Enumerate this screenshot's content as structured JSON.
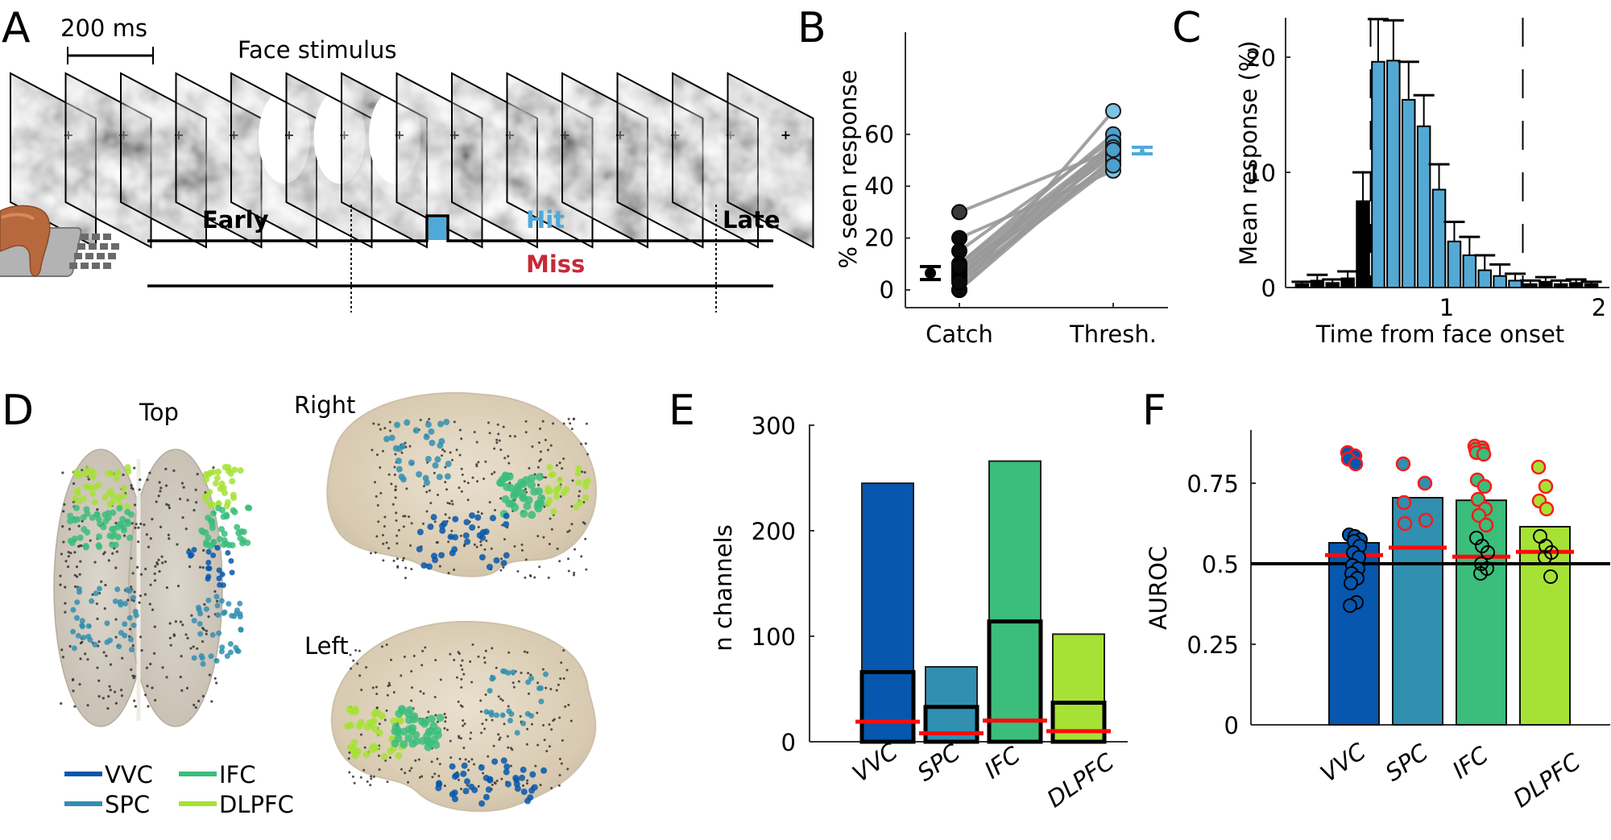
{
  "panels": {
    "A": {
      "label": "A",
      "scale_bar": "200 ms",
      "stimulus_label": "Face stimulus",
      "frame_count": 14,
      "face_frames": [
        4,
        5,
        6
      ],
      "timeline": {
        "early": "Early",
        "hit": "Hit",
        "late": "Late",
        "miss": "Miss"
      },
      "colors": {
        "hit": "#4ea9d8",
        "miss": "#c62a37"
      }
    },
    "B": {
      "label": "B"
    },
    "C": {
      "label": "C"
    },
    "D": {
      "label": "D",
      "views": [
        "Top",
        "Right",
        "Left"
      ],
      "legend": [
        {
          "name": "VVC",
          "color": "#0657ad"
        },
        {
          "name": "SPC",
          "color": "#318fb0"
        },
        {
          "name": "IFC",
          "color": "#3bbd7b"
        },
        {
          "name": "DLPFC",
          "color": "#a6e235"
        }
      ]
    },
    "E": {
      "label": "E"
    },
    "F": {
      "label": "F"
    }
  },
  "chart_data": [
    {
      "panel": "B",
      "type": "scatter",
      "title": "",
      "xlabel": "",
      "ylabel": "% seen response",
      "categories": [
        "Catch",
        "Thresh."
      ],
      "ylim": [
        -5,
        75
      ],
      "yticks": [
        0,
        20,
        40,
        60
      ],
      "paired_points": [
        [
          30,
          54
        ],
        [
          20,
          46
        ],
        [
          15,
          58
        ],
        [
          10,
          56
        ],
        [
          10,
          60
        ],
        [
          8,
          52
        ],
        [
          7,
          55
        ],
        [
          6,
          50
        ],
        [
          5,
          53
        ],
        [
          5,
          57
        ],
        [
          4,
          49
        ],
        [
          0,
          69
        ],
        [
          0,
          55
        ],
        [
          0,
          51
        ],
        [
          9,
          54
        ],
        [
          3,
          48
        ]
      ],
      "summary": [
        {
          "category": "Catch",
          "mean": 6.5,
          "lo": 4,
          "hi": 9,
          "color": "#000000"
        },
        {
          "category": "Thresh.",
          "mean": 53.5,
          "lo": 52.5,
          "hi": 55,
          "color": "#4ea9d8"
        }
      ]
    },
    {
      "panel": "C",
      "type": "bar",
      "title": "",
      "xlabel": "Time from face onset",
      "ylabel": "Mean response (%)",
      "xlim": [
        0,
        2.05
      ],
      "ylim": [
        0,
        24
      ],
      "xticks": [
        1,
        2
      ],
      "yticks": [
        0,
        10,
        20
      ],
      "window": [
        0.5,
        1.5
      ],
      "bin_centers": [
        0.1,
        0.2,
        0.3,
        0.4,
        0.5,
        0.6,
        0.7,
        0.8,
        0.9,
        1.0,
        1.1,
        1.2,
        1.3,
        1.4,
        1.5,
        1.6,
        1.7,
        1.8,
        1.9,
        2.0
      ],
      "values": [
        0.3,
        0.6,
        0.4,
        0.8,
        7.5,
        19.6,
        19.7,
        16.3,
        14.0,
        8.5,
        4.0,
        2.8,
        1.5,
        1.0,
        0.6,
        0.3,
        0.5,
        0.3,
        0.4,
        0.3
      ],
      "errors": [
        0.2,
        0.5,
        0.3,
        0.6,
        2.5,
        3.7,
        3.5,
        3.3,
        2.7,
        2.2,
        1.7,
        1.6,
        1.3,
        1.0,
        0.6,
        0.3,
        0.4,
        0.3,
        0.3,
        0.2
      ],
      "in_window_color": "#53a9d4",
      "out_window_color": "#000000"
    },
    {
      "panel": "E",
      "type": "bar",
      "title": "",
      "xlabel": "",
      "ylabel": "n channels",
      "categories": [
        "VVC",
        "SPC",
        "IFC",
        "DLPFC"
      ],
      "ylim": [
        0,
        300
      ],
      "yticks": [
        0,
        100,
        200,
        300
      ],
      "series": [
        {
          "name": "total",
          "values": [
            245,
            71,
            266,
            102
          ]
        },
        {
          "name": "significant",
          "values": [
            66,
            33,
            114,
            37
          ]
        },
        {
          "name": "chance",
          "values": [
            19,
            8,
            20,
            10
          ]
        }
      ],
      "colors": [
        "#0657ad",
        "#318fb0",
        "#3bbd7b",
        "#a6e235"
      ]
    },
    {
      "panel": "F",
      "type": "bar",
      "title": "",
      "xlabel": "",
      "ylabel": "AUROC",
      "categories": [
        "VVC",
        "SPC",
        "IFC",
        "DLPFC"
      ],
      "ylim": [
        0,
        0.92
      ],
      "yticks": [
        0,
        0.25,
        0.5,
        0.75
      ],
      "ytick_labels": [
        "0",
        "0.25",
        "0.5",
        "0.75"
      ],
      "reference_line": 0.5,
      "values": [
        0.565,
        0.705,
        0.697,
        0.615
      ],
      "chance_level": [
        0.527,
        0.55,
        0.522,
        0.537
      ],
      "colors": [
        "#0657ad",
        "#318fb0",
        "#3bbd7b",
        "#a6e235"
      ],
      "points": [
        {
          "sig": [
            0.845,
            0.835,
            0.825,
            0.81
          ],
          "nonsig": [
            0.59,
            0.585,
            0.575,
            0.57,
            0.555,
            0.535,
            0.52,
            0.495,
            0.485,
            0.47,
            0.455,
            0.44,
            0.38,
            0.37
          ]
        },
        {
          "sig": [
            0.81,
            0.75,
            0.69,
            0.635,
            0.625
          ],
          "nonsig": []
        },
        {
          "sig": [
            0.865,
            0.86,
            0.855,
            0.85,
            0.845,
            0.84,
            0.76,
            0.74,
            0.7,
            0.67,
            0.65,
            0.62
          ],
          "nonsig": [
            0.58,
            0.555,
            0.535,
            0.5,
            0.485,
            0.47
          ]
        },
        {
          "sig": [
            0.8,
            0.74,
            0.695,
            0.67
          ],
          "nonsig": [
            0.585,
            0.555,
            0.535,
            0.52,
            0.46
          ]
        }
      ]
    }
  ]
}
